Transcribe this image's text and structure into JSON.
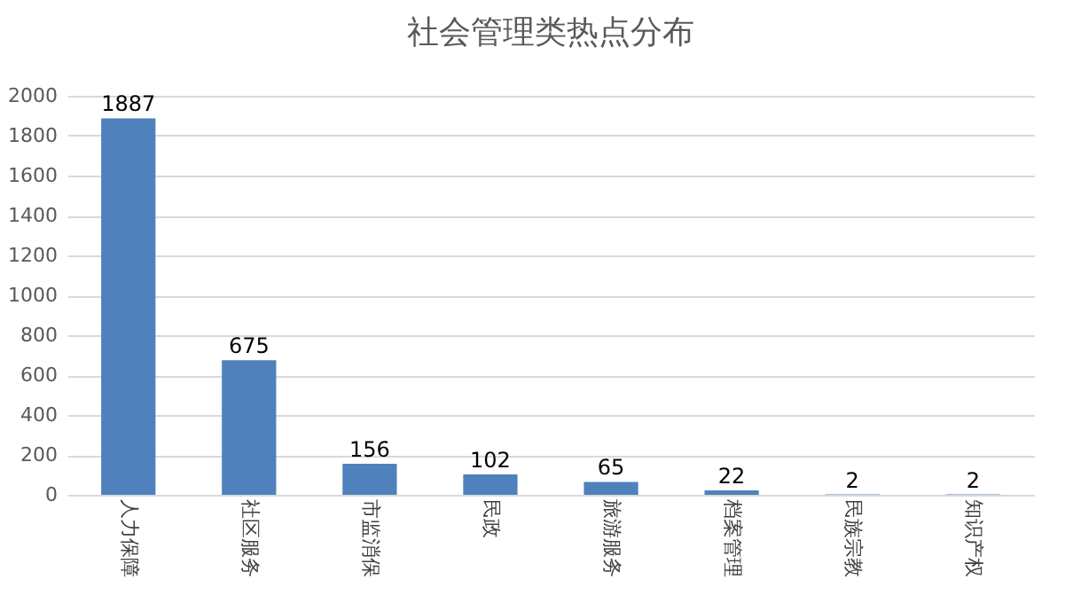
{
  "chart_data": {
    "type": "bar",
    "title": "社会管理类热点分布",
    "categories": [
      "人力保障",
      "社区服务",
      "市监消保",
      "民政",
      "旅游服务",
      "档案管理",
      "民族宗教",
      "知识产权"
    ],
    "values": [
      1887,
      675,
      156,
      102,
      65,
      22,
      2,
      2
    ],
    "color": "#4f81bd",
    "ylim": [
      0,
      2000
    ],
    "yticks": [
      0,
      200,
      400,
      600,
      800,
      1000,
      1200,
      1400,
      1600,
      1800,
      2000
    ],
    "grid": "y",
    "data_labels": true
  }
}
